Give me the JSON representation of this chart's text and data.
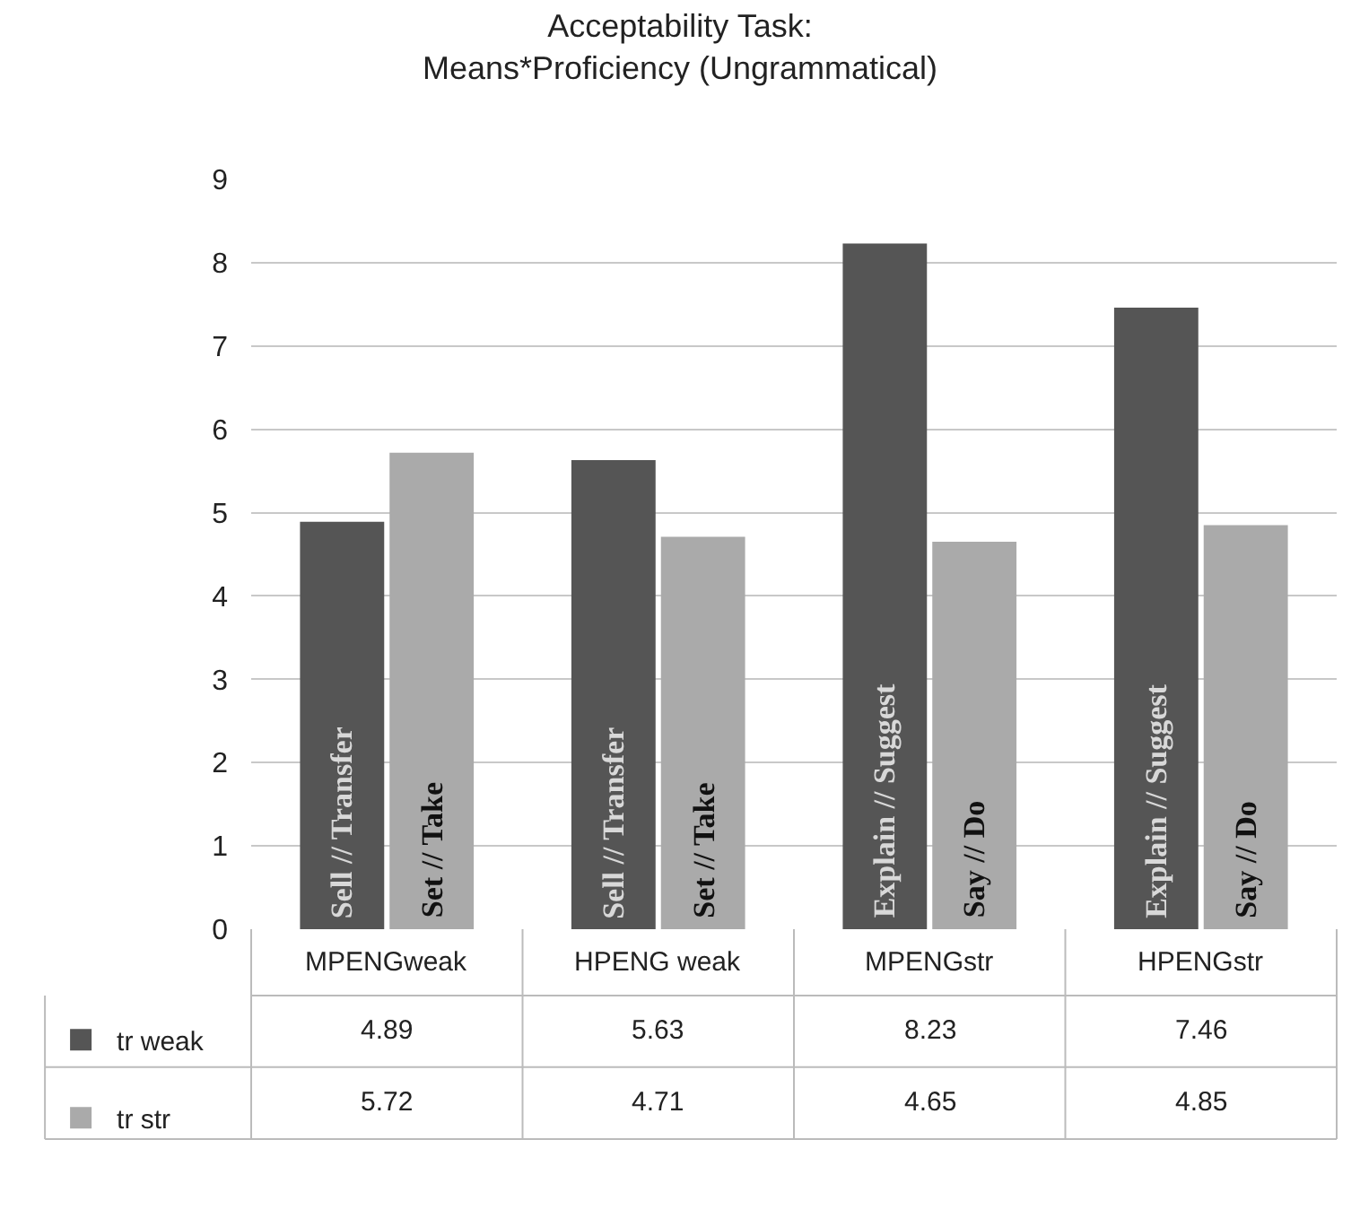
{
  "chart_data": {
    "type": "bar",
    "title": "Acceptability Task:\nMeans*Proficiency (Ungrammatical)",
    "categories": [
      "MPENGweak",
      "HPENG weak",
      "MPENGstr",
      "HPENGstr"
    ],
    "series": [
      {
        "name": "tr weak",
        "color": "#555555",
        "values": [
          4.89,
          5.63,
          8.23,
          7.46
        ]
      },
      {
        "name": "tr str",
        "color": "#aaaaaa",
        "values": [
          5.72,
          4.71,
          4.65,
          4.85
        ]
      }
    ],
    "annotations": [
      "Sell // Transfer",
      "Set // Take",
      "Sell // Transfer",
      "Set // Take",
      "Explain // Suggest",
      "Say // Do",
      "Explain // Suggest",
      "Say // Do"
    ],
    "ylim": [
      0,
      9
    ],
    "yticks": [
      0,
      1,
      2,
      3,
      4,
      5,
      6,
      7,
      8,
      9
    ],
    "grid": "y",
    "data_labels": true,
    "legend": "bottom"
  }
}
